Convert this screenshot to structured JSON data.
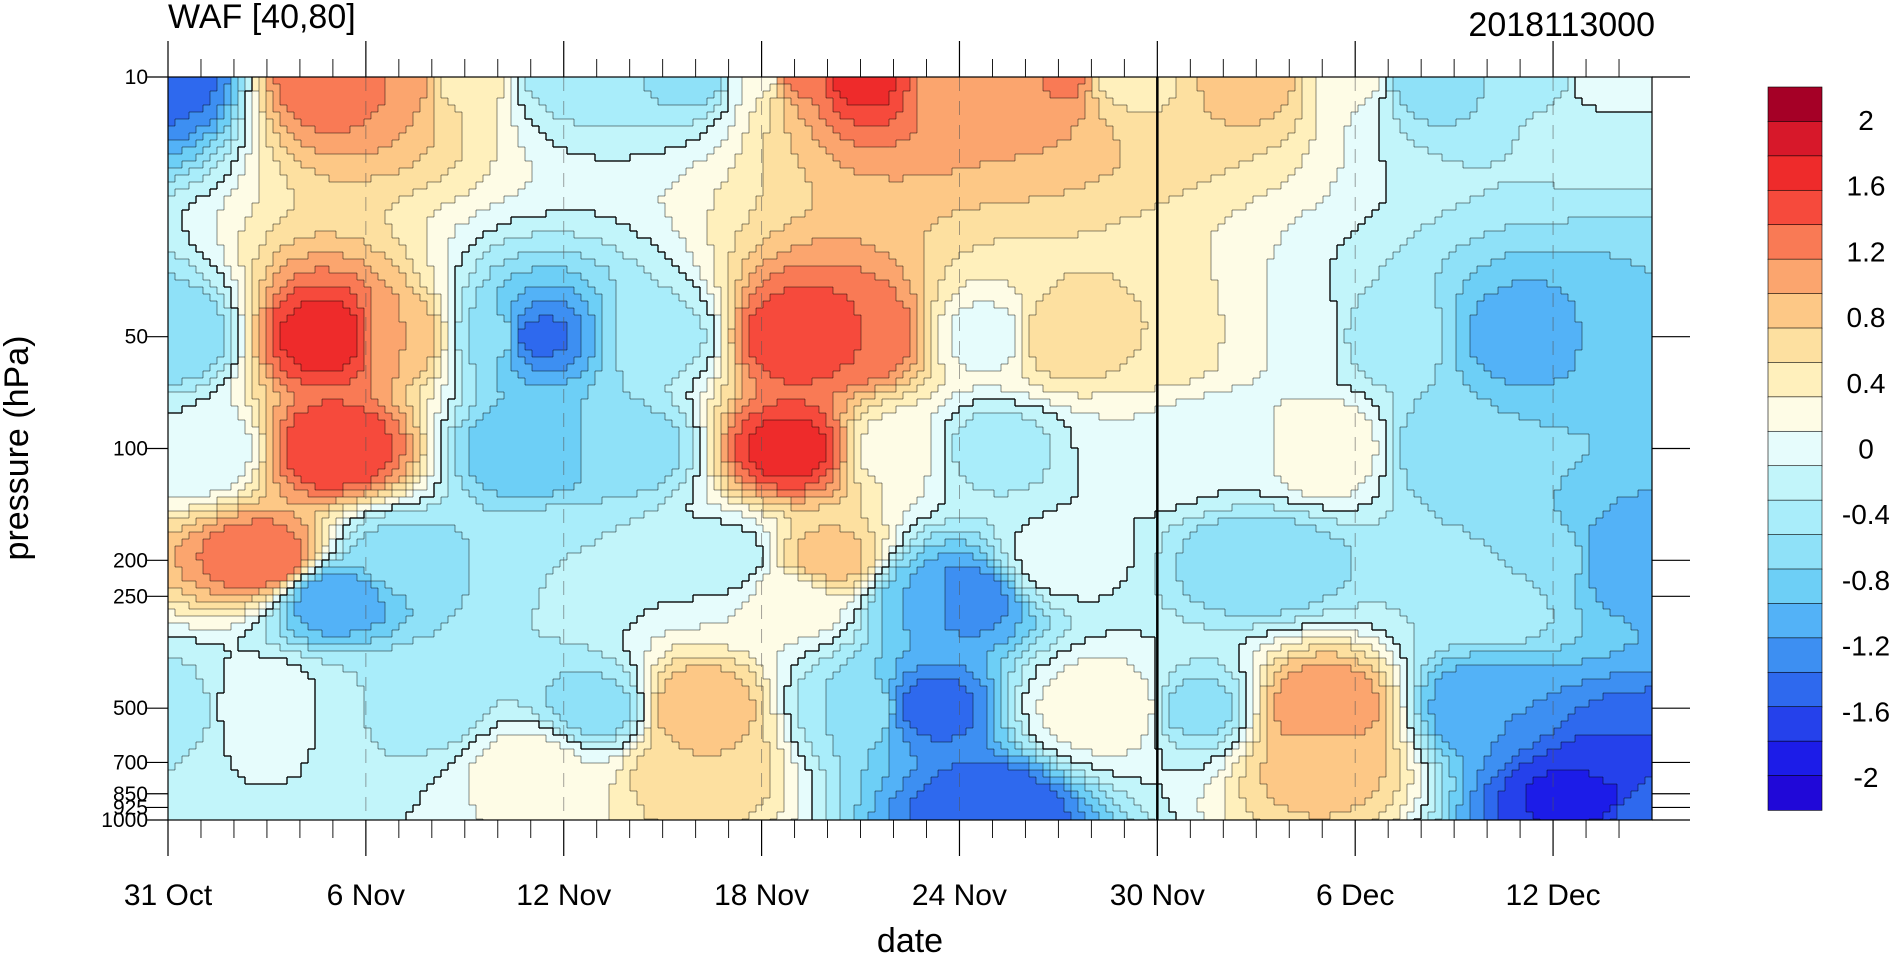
{
  "chart_data": {
    "type": "heatmap",
    "title": "WAF [40,80]",
    "timestamp_label": "2018113000",
    "xlabel": "date",
    "ylabel": "pressure (hPa)",
    "x_range": [
      "31 Oct",
      "15 Dec"
    ],
    "x_ticks": [
      "31 Oct",
      "6 Nov",
      "12 Nov",
      "18 Nov",
      "24 Nov",
      "30 Nov",
      "6 Dec",
      "12 Dec"
    ],
    "x_tick_days": [
      0,
      6,
      12,
      18,
      24,
      30,
      36,
      42
    ],
    "x_minor_days": [
      1,
      2,
      3,
      4,
      5,
      7,
      8,
      9,
      10,
      11,
      13,
      14,
      15,
      16,
      17,
      19,
      20,
      21,
      22,
      23,
      25,
      26,
      27,
      28,
      29,
      31,
      32,
      33,
      34,
      35,
      37,
      38,
      39,
      40,
      41,
      43,
      44
    ],
    "x_end_day": 45,
    "marker_line_day": 30,
    "y_scale": "log",
    "y_ticks": [
      "10",
      "50",
      "100",
      "200",
      "250",
      "500",
      "700",
      "850",
      "925",
      "1000"
    ],
    "y_tick_values": [
      10,
      50,
      100,
      200,
      250,
      500,
      700,
      850,
      925,
      1000
    ],
    "y_range": [
      10,
      1000
    ],
    "colorbar": {
      "labels": [
        "2",
        "1.6",
        "1.2",
        "0.8",
        "0.4",
        "0",
        "-0.4",
        "-0.8",
        "-1.2",
        "-1.6",
        "-2"
      ],
      "colors": [
        "#a50026",
        "#d7182a",
        "#ee2b2b",
        "#f64a3c",
        "#f97a55",
        "#fba56e",
        "#fdc886",
        "#fde0a0",
        "#fff0bc",
        "#fefce6",
        "#e6fcfc",
        "#c2f5fa",
        "#a9edfa",
        "#8fe1f8",
        "#6dcff6",
        "#53b2f7",
        "#3d8ff2",
        "#2e69ee",
        "#2541eb",
        "#1c1ce8",
        "#2008d8"
      ]
    },
    "grid": "dashed vertical lines at major date ticks",
    "field_points": [
      {
        "day": 0,
        "p": 10,
        "v": -1.3
      },
      {
        "day": 0,
        "p": 50,
        "v": -0.6
      },
      {
        "day": 0,
        "p": 500,
        "v": -0.3
      },
      {
        "day": 1,
        "p": 100,
        "v": 0.0
      },
      {
        "day": 3,
        "p": 200,
        "v": 1.4
      },
      {
        "day": 3,
        "p": 500,
        "v": 0.2
      },
      {
        "day": 5,
        "p": 10,
        "v": 1.4
      },
      {
        "day": 5,
        "p": 50,
        "v": 1.75
      },
      {
        "day": 5,
        "p": 100,
        "v": 1.6
      },
      {
        "day": 5,
        "p": 250,
        "v": -1.0
      },
      {
        "day": 6,
        "p": 500,
        "v": -0.2
      },
      {
        "day": 7,
        "p": 10,
        "v": 1.2
      },
      {
        "day": 7,
        "p": 50,
        "v": 1.0
      },
      {
        "day": 7,
        "p": 200,
        "v": -0.5
      },
      {
        "day": 8,
        "p": 500,
        "v": -0.3
      },
      {
        "day": 9,
        "p": 10,
        "v": 0.5
      },
      {
        "day": 10,
        "p": 50,
        "v": -0.4
      },
      {
        "day": 11,
        "p": 50,
        "v": -1.3
      },
      {
        "day": 11,
        "p": 100,
        "v": -0.8
      },
      {
        "day": 11,
        "p": 700,
        "v": 0.3
      },
      {
        "day": 12,
        "p": 10,
        "v": -0.3
      },
      {
        "day": 12,
        "p": 200,
        "v": -0.2
      },
      {
        "day": 13,
        "p": 500,
        "v": -0.5
      },
      {
        "day": 14,
        "p": 100,
        "v": -0.5
      },
      {
        "day": 15,
        "p": 50,
        "v": -0.3
      },
      {
        "day": 16,
        "p": 10,
        "v": -0.5
      },
      {
        "day": 16,
        "p": 500,
        "v": 1.0
      },
      {
        "day": 16,
        "p": 700,
        "v": 0.8
      },
      {
        "day": 17,
        "p": 200,
        "v": -0.1
      },
      {
        "day": 18,
        "p": 10,
        "v": 0.2
      },
      {
        "day": 19,
        "p": 10,
        "v": 1.3
      },
      {
        "day": 19,
        "p": 50,
        "v": 1.6
      },
      {
        "day": 19,
        "p": 100,
        "v": 1.7
      },
      {
        "day": 19,
        "p": 250,
        "v": 0.3
      },
      {
        "day": 20,
        "p": 200,
        "v": 0.9
      },
      {
        "day": 21,
        "p": 10,
        "v": 1.7
      },
      {
        "day": 21,
        "p": 50,
        "v": 1.4
      },
      {
        "day": 21,
        "p": 500,
        "v": -0.4
      },
      {
        "day": 22,
        "p": 100,
        "v": 0.3
      },
      {
        "day": 23,
        "p": 250,
        "v": -0.8
      },
      {
        "day": 23,
        "p": 500,
        "v": -1.3
      },
      {
        "day": 24,
        "p": 10,
        "v": 1.0
      },
      {
        "day": 24,
        "p": 250,
        "v": -1.2
      },
      {
        "day": 25,
        "p": 50,
        "v": 0.1
      },
      {
        "day": 25,
        "p": 100,
        "v": -0.3
      },
      {
        "day": 25,
        "p": 925,
        "v": -1.4
      },
      {
        "day": 26,
        "p": 10,
        "v": 1.0
      },
      {
        "day": 27,
        "p": 10,
        "v": 1.3
      },
      {
        "day": 27,
        "p": 50,
        "v": 0.8
      },
      {
        "day": 27,
        "p": 200,
        "v": 0.1
      },
      {
        "day": 28,
        "p": 500,
        "v": 0.3
      },
      {
        "day": 29,
        "p": 10,
        "v": 0.5
      },
      {
        "day": 29,
        "p": 500,
        "v": 0.4
      },
      {
        "day": 30,
        "p": 50,
        "v": 0.6
      },
      {
        "day": 30,
        "p": 100,
        "v": 0.2
      },
      {
        "day": 31,
        "p": 500,
        "v": -0.5
      },
      {
        "day": 32,
        "p": 100,
        "v": 0.0
      },
      {
        "day": 33,
        "p": 10,
        "v": 0.9
      },
      {
        "day": 33,
        "p": 200,
        "v": -0.6
      },
      {
        "day": 34,
        "p": 50,
        "v": 0.2
      },
      {
        "day": 35,
        "p": 100,
        "v": 0.4
      },
      {
        "day": 35,
        "p": 500,
        "v": 1.2
      },
      {
        "day": 35,
        "p": 700,
        "v": 0.9
      },
      {
        "day": 36,
        "p": 10,
        "v": 0.3
      },
      {
        "day": 37,
        "p": 50,
        "v": -0.3
      },
      {
        "day": 38,
        "p": 10,
        "v": -0.6
      },
      {
        "day": 39,
        "p": 100,
        "v": -0.6
      },
      {
        "day": 40,
        "p": 250,
        "v": -0.2
      },
      {
        "day": 40,
        "p": 500,
        "v": -1.0
      },
      {
        "day": 41,
        "p": 50,
        "v": -0.9
      },
      {
        "day": 42,
        "p": 10,
        "v": -0.3
      },
      {
        "day": 42,
        "p": 200,
        "v": -0.5
      },
      {
        "day": 43,
        "p": 10,
        "v": 0.1
      },
      {
        "day": 43,
        "p": 850,
        "v": -1.7
      },
      {
        "day": 44,
        "p": 200,
        "v": -1.0
      },
      {
        "day": 44,
        "p": 700,
        "v": -1.4
      },
      {
        "day": 45,
        "p": 50,
        "v": -0.6
      },
      {
        "day": 45,
        "p": 1000,
        "v": -1.2
      }
    ]
  }
}
